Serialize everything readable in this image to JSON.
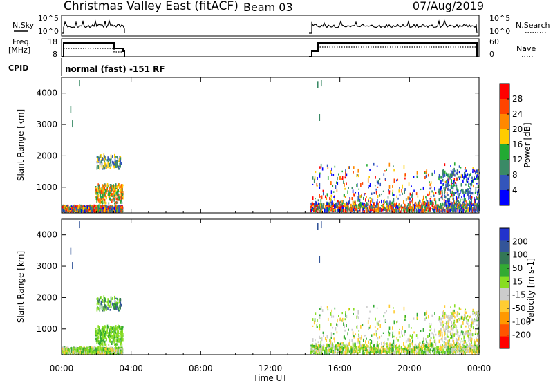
{
  "header": {
    "station": "Christmas Valley East (fitACF)",
    "beam": "Beam 03",
    "date": "07/Aug/2019"
  },
  "top_panel": {
    "left_label": "N.Sky",
    "left_ticks": [
      "10^5",
      "10^0"
    ],
    "right_label": "N.Search",
    "right_ticks": [
      "10^5",
      "10^0"
    ]
  },
  "freq_panel": {
    "left_label_1": "Freq.",
    "left_label_2": "[MHz]",
    "left_ticks": [
      "18",
      "8"
    ],
    "right_label": "Nave",
    "right_ticks": [
      "60",
      "0"
    ]
  },
  "cpid": {
    "label": "CPID",
    "text": "normal (fast) -151 RF"
  },
  "colors": {
    "power": [
      "#0000ff",
      "#3355bb",
      "#3a8a66",
      "#22aa33",
      "#ffcc00",
      "#ff8800",
      "#ff4400",
      "#ff0000"
    ],
    "velocity": [
      "#ff0000",
      "#ff5500",
      "#ff9900",
      "#ffcc33",
      "#cccccc",
      "#88dd22",
      "#33aa33",
      "#337755",
      "#335599",
      "#2233cc"
    ]
  },
  "chart_data": [
    {
      "type": "heatmap",
      "ylabel": "Slant Range [km]",
      "y_ticks": [
        "1000",
        "2000",
        "3000",
        "4000"
      ],
      "ylim": [
        180,
        4500
      ],
      "x_ticks": [
        "00:00",
        "04:00",
        "08:00",
        "12:00",
        "16:00",
        "20:00",
        "00:00"
      ],
      "xlim_hours": [
        0,
        24
      ],
      "colorbar_label": "Power [dB]",
      "colorbar_ticks": [
        "28",
        "24",
        "20",
        "16",
        "12",
        "8",
        "4"
      ],
      "clim": [
        0,
        32
      ]
    },
    {
      "type": "heatmap",
      "ylabel": "Slant Range [km]",
      "y_ticks": [
        "1000",
        "2000",
        "3000",
        "4000"
      ],
      "ylim": [
        180,
        4500
      ],
      "x_ticks": [
        "00:00",
        "04:00",
        "08:00",
        "12:00",
        "16:00",
        "20:00",
        "00:00"
      ],
      "xlim_hours": [
        0,
        24
      ],
      "xlabel": "Time UT",
      "colorbar_label": "Velocity [m s-1]",
      "colorbar_ticks": [
        "200",
        "100",
        "50",
        "15",
        "-15",
        "-50",
        "-100",
        "-200"
      ]
    }
  ],
  "scatter_regions": [
    {
      "t": [
        0.0,
        3.5
      ],
      "r": [
        180,
        330
      ],
      "kind": "ground"
    },
    {
      "t": [
        1.9,
        3.5
      ],
      "r": [
        450,
        1050
      ],
      "kind": "mid"
    },
    {
      "t": [
        2.0,
        3.4
      ],
      "r": [
        1550,
        1950
      ],
      "kind": "high"
    },
    {
      "t": [
        14.3,
        24.0
      ],
      "r": [
        180,
        420
      ],
      "kind": "ground"
    },
    {
      "t": [
        14.3,
        24.0
      ],
      "r": [
        420,
        1700
      ],
      "kind": "sparse"
    },
    {
      "t": [
        21.6,
        24.0
      ],
      "r": [
        200,
        1500
      ],
      "kind": "late"
    }
  ]
}
